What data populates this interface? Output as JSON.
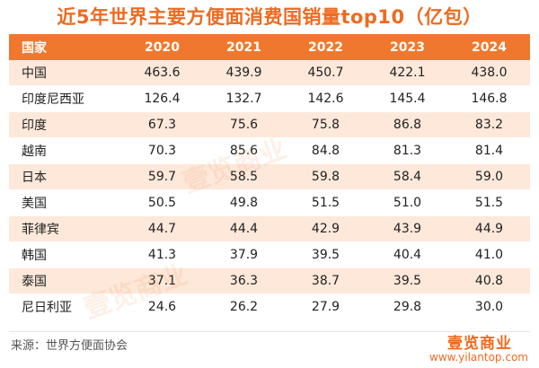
{
  "title": "近5年世界主要方便面消费国销量top10（亿包）",
  "columns": [
    "国家",
    "2020",
    "2021",
    "2022",
    "2023",
    "2024"
  ],
  "rows": [
    {
      "country": "中国",
      "values": [
        "463.6",
        "439.9",
        "450.7",
        "422.1",
        "438.0"
      ]
    },
    {
      "country": "印度尼西亚",
      "values": [
        "126.4",
        "132.7",
        "142.6",
        "145.4",
        "146.8"
      ]
    },
    {
      "country": "印度",
      "values": [
        "67.3",
        "75.6",
        "75.8",
        "86.8",
        "83.2"
      ]
    },
    {
      "country": "越南",
      "values": [
        "70.3",
        "85.6",
        "84.8",
        "81.3",
        "81.4"
      ]
    },
    {
      "country": "日本",
      "values": [
        "59.7",
        "58.5",
        "59.8",
        "58.4",
        "59.0"
      ]
    },
    {
      "country": "美国",
      "values": [
        "50.5",
        "49.8",
        "51.5",
        "51.0",
        "51.5"
      ]
    },
    {
      "country": "菲律宾",
      "values": [
        "44.7",
        "44.4",
        "42.9",
        "43.9",
        "44.9"
      ]
    },
    {
      "country": "韩国",
      "values": [
        "41.3",
        "37.9",
        "39.5",
        "40.4",
        "41.0"
      ]
    },
    {
      "country": "泰国",
      "values": [
        "37.1",
        "36.3",
        "38.7",
        "39.5",
        "40.8"
      ]
    },
    {
      "country": "尼日利亚",
      "values": [
        "24.6",
        "26.2",
        "27.9",
        "29.8",
        "30.0"
      ]
    }
  ],
  "source": "来源：世界方便面协会",
  "logo": "壹览商业",
  "url": "www.yilantop.com",
  "colors": {
    "accent": "#f0782e",
    "row_tint": "#fde8da"
  }
}
